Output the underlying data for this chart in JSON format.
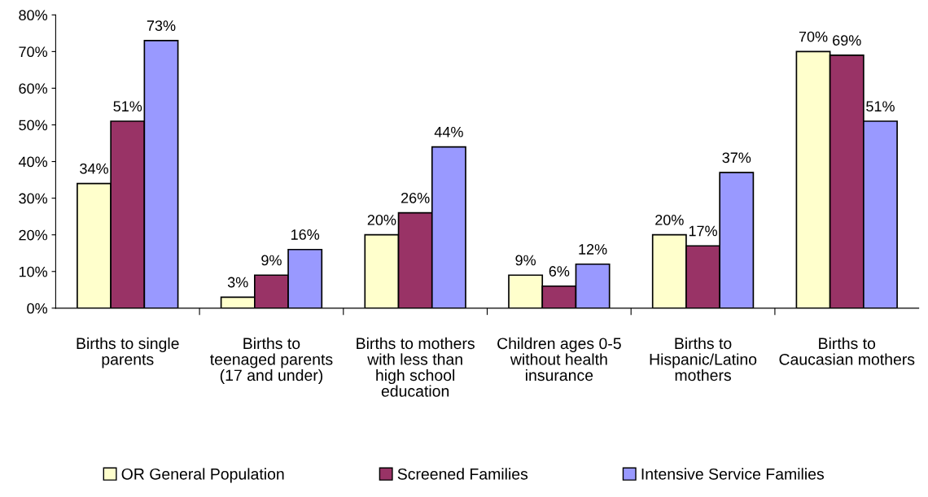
{
  "chart_data": {
    "type": "bar",
    "categories": [
      "Births to single parents",
      "Births to teenaged parents (17 and under)",
      "Births to mothers with less than high school education",
      "Children ages 0-5 without health insurance",
      "Births to Hispanic/Latino mothers",
      "Births to Caucasian mothers"
    ],
    "series": [
      {
        "name": "OR General Population",
        "color": "#ffffcc",
        "values": [
          34,
          3,
          20,
          9,
          20,
          70
        ],
        "value_labels": [
          "34%",
          "3%",
          "20%",
          "9%",
          "20%",
          "70%"
        ]
      },
      {
        "name": "Screened Families",
        "color": "#993366",
        "values": [
          51,
          9,
          26,
          6,
          17,
          69
        ],
        "value_labels": [
          "51%",
          "9%",
          "26%",
          "6%",
          "17%",
          "69%"
        ]
      },
      {
        "name": "Intensive Service Families",
        "color": "#9999ff",
        "values": [
          73,
          16,
          44,
          12,
          37,
          51
        ],
        "value_labels": [
          "73%",
          "16%",
          "44%",
          "12%",
          "37%",
          "51%"
        ]
      }
    ],
    "ylim": [
      0,
      80
    ],
    "yticks": [
      {
        "value": 0,
        "label": "0%"
      },
      {
        "value": 10,
        "label": "10%"
      },
      {
        "value": 20,
        "label": "20%"
      },
      {
        "value": 30,
        "label": "30%"
      },
      {
        "value": 40,
        "label": "40%"
      },
      {
        "value": 50,
        "label": "50%"
      },
      {
        "value": 60,
        "label": "60%"
      },
      {
        "value": 70,
        "label": "70%"
      },
      {
        "value": 80,
        "label": "80%"
      }
    ],
    "grid": false,
    "legend": "bottom"
  }
}
